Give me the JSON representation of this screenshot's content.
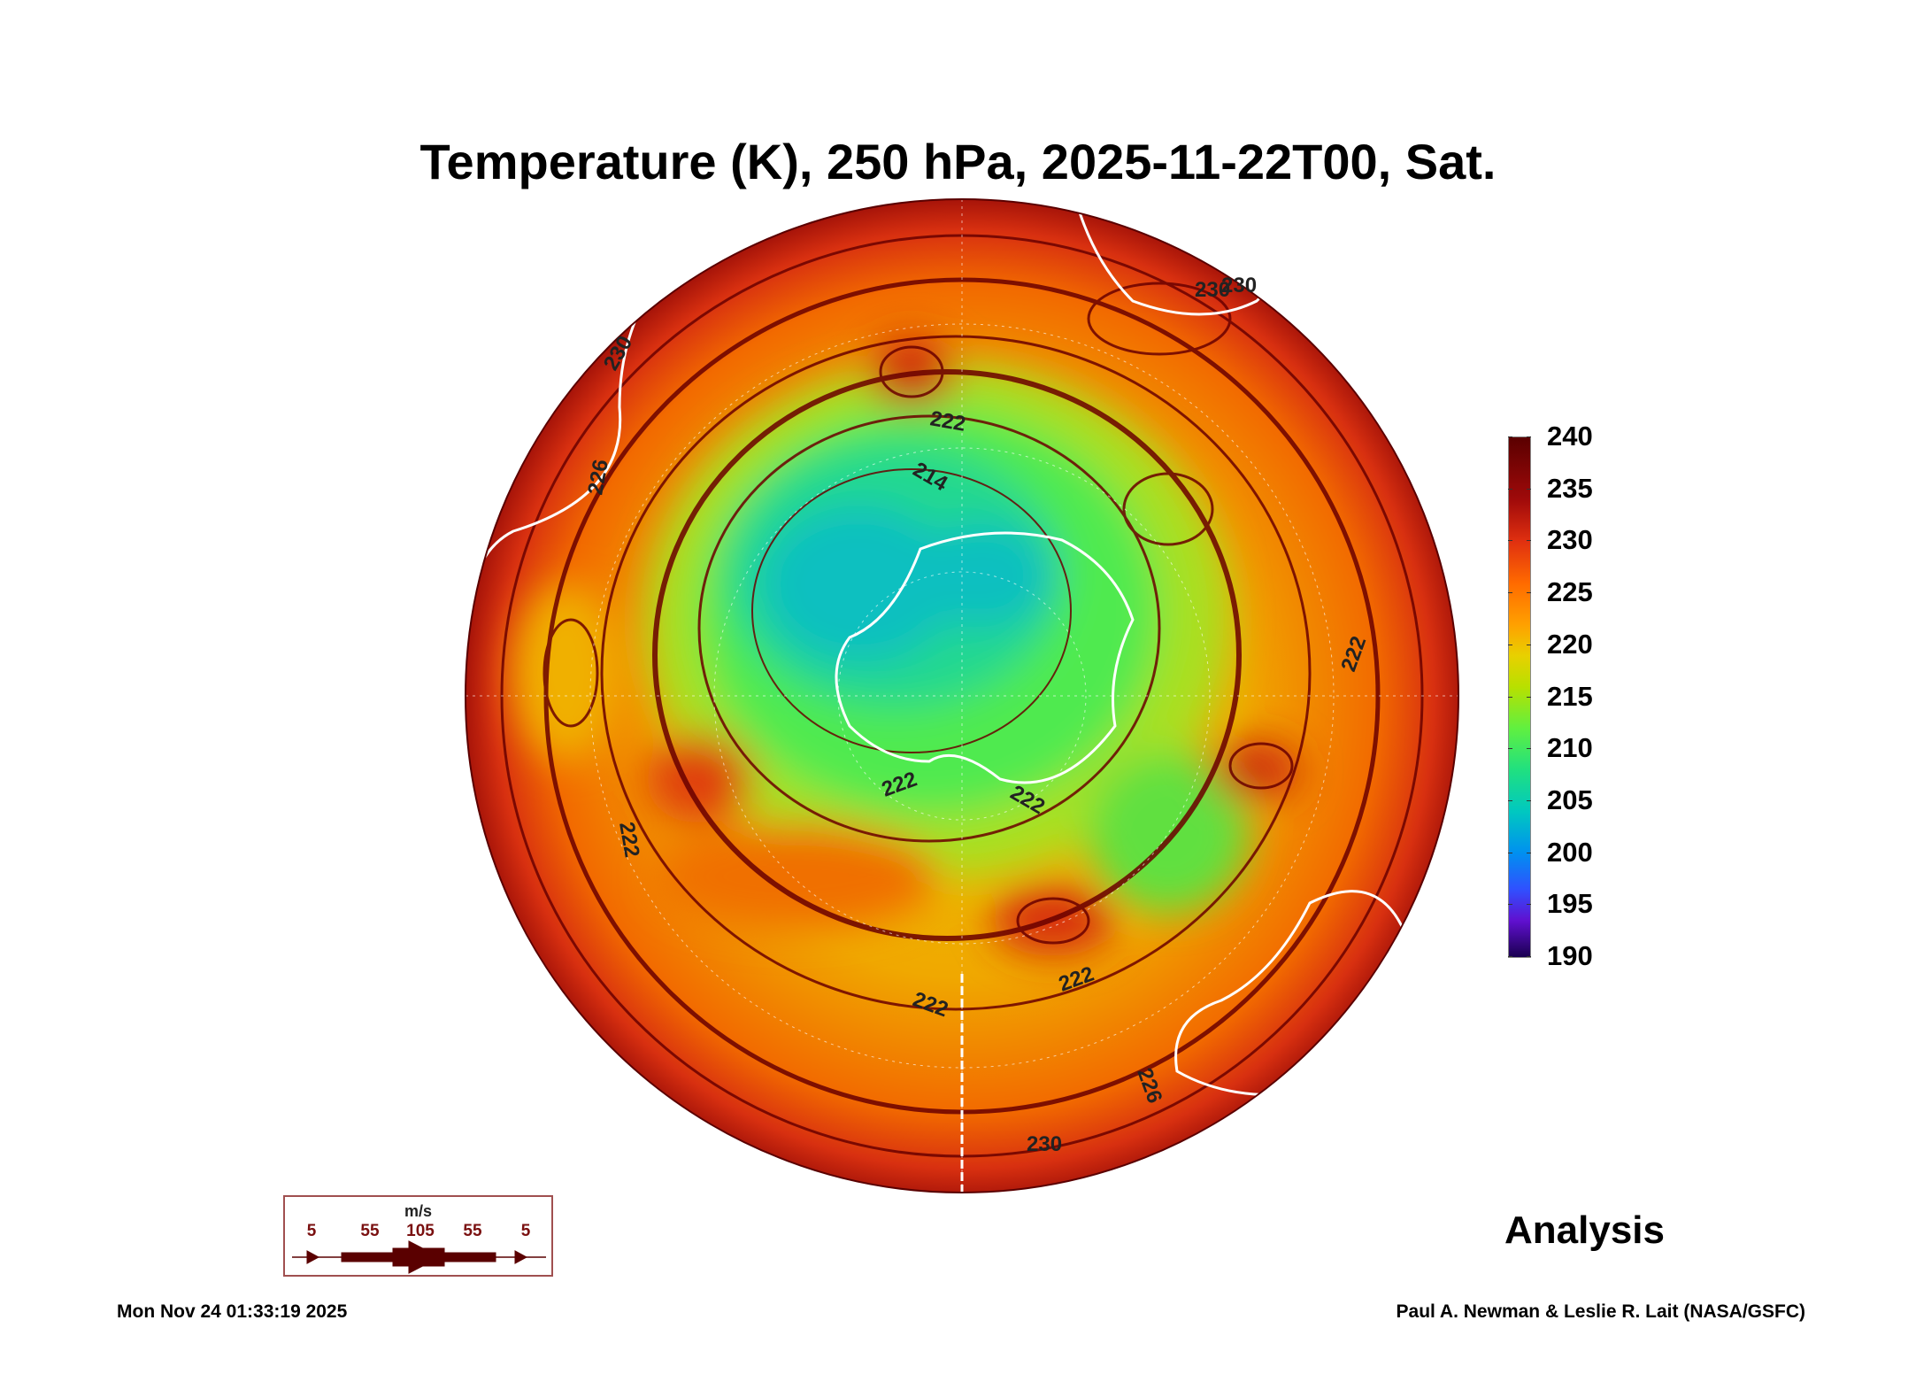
{
  "title": "Temperature (K), 250 hPa, 2025-11-22T00, Sat.",
  "colorbar": {
    "labels": [
      "240",
      "235",
      "230",
      "225",
      "220",
      "215",
      "210",
      "205",
      "200",
      "195",
      "190"
    ],
    "min": 190,
    "max": 240,
    "units": "K"
  },
  "contour_labels": [
    "230",
    "222",
    "214",
    "226",
    "230",
    "230",
    "222",
    "222",
    "222",
    "222",
    "222",
    "230",
    "222",
    "226"
  ],
  "wind_legend": {
    "unit": "m/s",
    "speeds": [
      "5",
      "55",
      "105",
      "55",
      "5"
    ],
    "color": "#5a0000"
  },
  "product_label": "Analysis",
  "footer": {
    "timestamp": "Mon Nov 24 01:33:19 2025",
    "credit": "Paul A. Newman & Leslie R. Lait (NASA/GSFC)"
  }
}
